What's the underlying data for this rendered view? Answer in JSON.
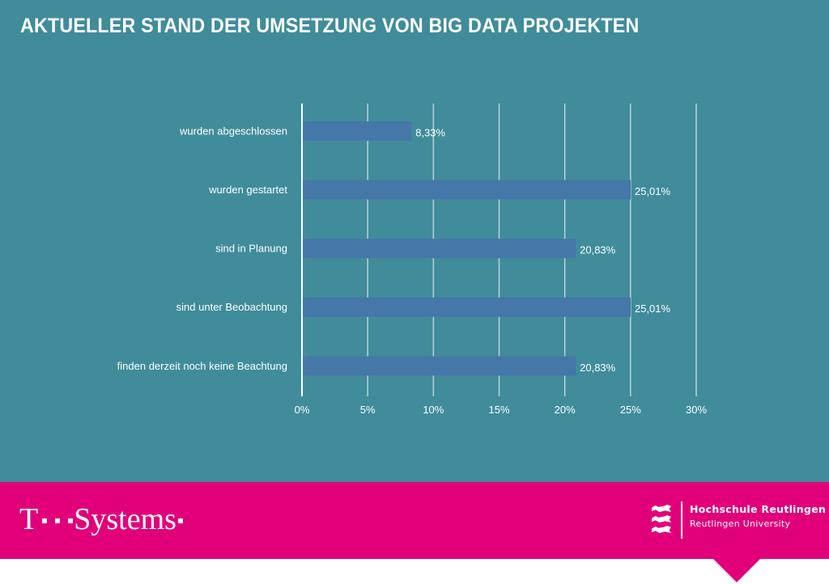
{
  "header": {
    "title": "AKTUELLER STAND DER UMSETZUNG VON BIG DATA PROJEKTEN"
  },
  "colors": {
    "background": "#408c9b",
    "bar": "#4577a8",
    "gridline": "#b7d3d8",
    "axis": "#ffffff",
    "footer": "#e2007a",
    "text": "#ffffff"
  },
  "chart_data": {
    "type": "bar",
    "orientation": "horizontal",
    "title": "AKTUELLER STAND DER UMSETZUNG VON BIG DATA PROJEKTEN",
    "xlabel": "",
    "ylabel": "",
    "categories": [
      "wurden abgeschlossen",
      "wurden gestartet",
      "sind in Planung",
      "sind unter Beobachtung",
      "finden derzeit noch keine Beachtung"
    ],
    "values": [
      8.33,
      25.01,
      20.83,
      25.01,
      20.83
    ],
    "value_labels": [
      "8,33%",
      "25,01%",
      "20,83%",
      "25,01%",
      "20,83%"
    ],
    "xlim": [
      0,
      30
    ],
    "xticks": [
      0,
      5,
      10,
      15,
      20,
      25,
      30
    ],
    "xtick_labels": [
      "0%",
      "5%",
      "10%",
      "15%",
      "20%",
      "25%",
      "30%"
    ],
    "grid": true,
    "legend": "none"
  },
  "footer": {
    "left_logo": {
      "brand_t": "T",
      "brand_name": "Systems"
    },
    "right_logo": {
      "icon": "coat-of-arms-lions-icon",
      "name": "Hochschule Reutlingen",
      "subtitle": "Reutlingen University"
    }
  }
}
